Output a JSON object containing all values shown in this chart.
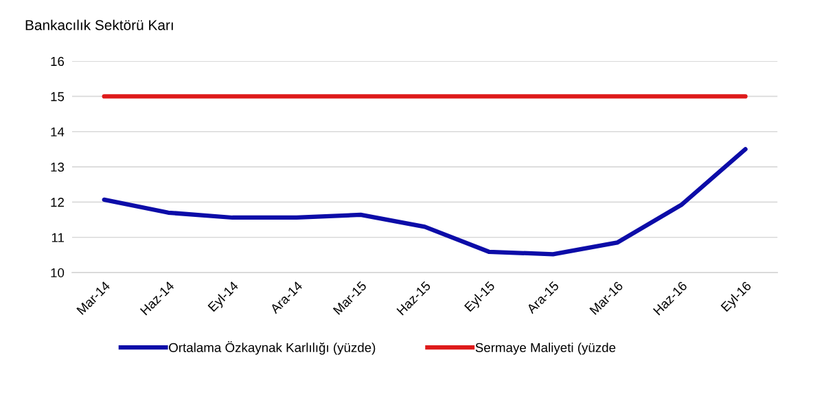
{
  "chart_data": {
    "type": "line",
    "title": "Bankacılık Sektörü Karı",
    "categories": [
      "Mar-14",
      "Haz-14",
      "Eyl-14",
      "Ara-14",
      "Mar-15",
      "Haz-15",
      "Eyl-15",
      "Ara-15",
      "Mar-16",
      "Haz-16",
      "Eyl-16"
    ],
    "series": [
      {
        "name": "Ortalama Özkaynak Karlılığı (yüzde)",
        "color": "#0c0ca8",
        "values": [
          12.07,
          11.7,
          11.56,
          11.56,
          11.64,
          11.3,
          10.59,
          10.52,
          10.85,
          11.92,
          13.5
        ]
      },
      {
        "name": "Sermaye Maliyeti (yüzde",
        "color": "#de1a1a",
        "values": [
          15,
          15,
          15,
          15,
          15,
          15,
          15,
          15,
          15,
          15,
          15
        ]
      }
    ],
    "ylim": [
      10,
      16
    ],
    "yticks": [
      10,
      11,
      12,
      13,
      14,
      15,
      16
    ],
    "grid": "y",
    "legend": "bottom",
    "marker": "none",
    "line_style": "solid"
  }
}
